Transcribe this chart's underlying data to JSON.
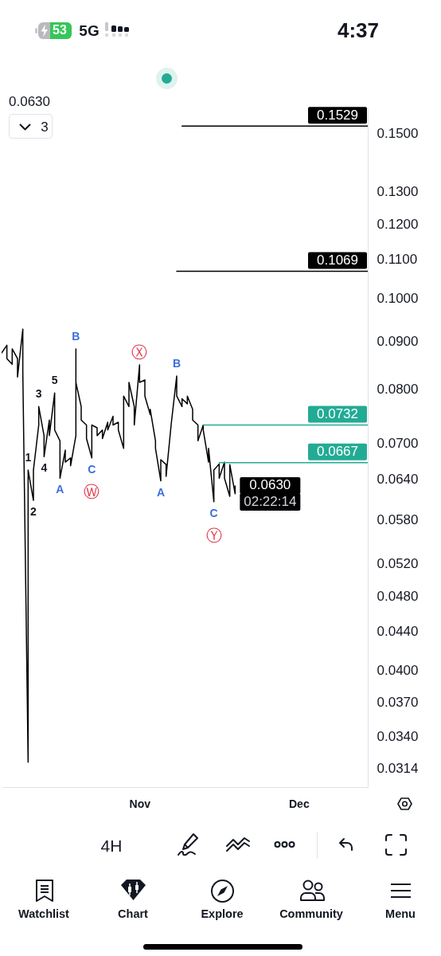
{
  "chart_data": {
    "type": "line",
    "subtitle": "0.0630",
    "log": true,
    "xlim": [
      "--10-06",
      "--12-14"
    ],
    "ylim": [
      0.03,
      0.16
    ],
    "xticks": [
      {
        "value": "--11-01",
        "label": "Nov"
      },
      {
        "value": "--12-01",
        "label": "Dec"
      }
    ],
    "yticks": [
      {
        "value": 0.15,
        "label": "0.1500"
      },
      {
        "value": 0.13,
        "label": "0.1300"
      },
      {
        "value": 0.12,
        "label": "0.1200"
      },
      {
        "value": 0.11,
        "label": "0.1100"
      },
      {
        "value": 0.1,
        "label": "0.1000"
      },
      {
        "value": 0.09,
        "label": "0.0900"
      },
      {
        "value": 0.08,
        "label": "0.0800"
      },
      {
        "value": 0.07,
        "label": "0.0700"
      },
      {
        "value": 0.064,
        "label": "0.0640"
      },
      {
        "value": 0.058,
        "label": "0.0580"
      },
      {
        "value": 0.052,
        "label": "0.0520"
      },
      {
        "value": 0.048,
        "label": "0.0480"
      },
      {
        "value": 0.044,
        "label": "0.0440"
      },
      {
        "value": 0.04,
        "label": "0.0400"
      },
      {
        "value": 0.037,
        "label": "0.0370"
      },
      {
        "value": 0.034,
        "label": "0.0340"
      },
      0.0314
    ],
    "series": [
      {
        "color": "#000000",
        "x": [
          "--10-06",
          "--10-07",
          "--10-07",
          "--10-08",
          "--10-08",
          "--10-09",
          "--10-09",
          "--10-10",
          "--10-10",
          "--10-11",
          "--10-11",
          "--10-12",
          "--10-12",
          "--10-13",
          "--10-13",
          "--10-14",
          "--10-14",
          "--10-15",
          "--10-15",
          "--10-16",
          "--10-16",
          "--10-17",
          "--10-17",
          "--10-18",
          "--10-18",
          "--10-19",
          "--10-19",
          "--10-20",
          "--10-20",
          "--10-20",
          "--10-21",
          "--10-21",
          "--10-22",
          "--10-22",
          "--10-23",
          "--10-23",
          "--10-24",
          "--10-24",
          "--10-25",
          "--10-25",
          "--10-26",
          "--10-26",
          "--10-27",
          "--10-27",
          "--10-28",
          "--10-28",
          "--10-29",
          "--10-29",
          "--10-30",
          "--10-30",
          "--10-31",
          "--10-31",
          "--11-01",
          "--11-01",
          "--11-02",
          "--11-02",
          "--11-03",
          "--11-03",
          "--11-04",
          "--11-04",
          "--11-05",
          "--11-05",
          "--11-06",
          "--11-06",
          "--11-07",
          "--11-08",
          "--11-08",
          "--11-09",
          "--11-09",
          "--11-10",
          "--11-10",
          "--11-11",
          "--11-11",
          "--11-12",
          "--11-12",
          "--11-13",
          "--11-13",
          "--11-14",
          "--11-14",
          "--11-15",
          "--11-15",
          "--11-16",
          "--11-16",
          "--11-17",
          "--11-17",
          "--11-18",
          "--11-18",
          "--11-19",
          "--11-19"
        ],
        "values": [
          0.0874,
          0.0891,
          0.0862,
          0.085,
          0.0883,
          0.0862,
          0.0824,
          0.0927,
          0.0834,
          0.0319,
          0.0655,
          0.0608,
          0.0655,
          0.0732,
          0.0766,
          0.0713,
          0.0677,
          0.0741,
          0.0713,
          0.0792,
          0.0723,
          0.0704,
          0.0642,
          0.0688,
          0.0668,
          0.0675,
          0.0662,
          0.0713,
          0.0883,
          0.0813,
          0.0766,
          0.0741,
          0.0732,
          0.0708,
          0.0675,
          0.0732,
          0.0727,
          0.0713,
          0.0723,
          0.0708,
          0.0737,
          0.0723,
          0.0748,
          0.0732,
          0.0737,
          0.0723,
          0.0691,
          0.0786,
          0.0766,
          0.0813,
          0.0766,
          0.0732,
          0.0849,
          0.0813,
          0.0818,
          0.0786,
          0.0751,
          0.0761,
          0.0704,
          0.0691,
          0.0638,
          0.0672,
          0.0664,
          0.0645,
          0.0737,
          0.0826,
          0.0786,
          0.0766,
          0.0781,
          0.0771,
          0.0786,
          0.0761,
          0.0741,
          0.0732,
          0.0704,
          0.0732,
          0.0723,
          0.0668,
          0.0691,
          0.0606,
          0.0655,
          0.0665,
          0.0642,
          0.0668,
          0.0642,
          0.0614,
          0.0664,
          0.0618,
          0.063
        ],
        "value_labels": [
          null,
          null,
          null,
          null,
          null,
          null,
          null,
          null,
          null,
          null,
          null,
          null,
          null,
          null,
          null,
          null,
          null,
          null,
          null,
          null,
          null,
          null,
          null,
          null,
          null,
          null,
          null,
          null,
          null,
          null,
          null,
          null,
          null,
          null,
          null,
          null,
          null,
          null,
          null,
          null,
          null,
          null,
          null,
          null,
          null,
          null,
          null,
          null,
          null,
          null,
          null,
          null,
          null,
          null,
          null,
          null,
          null,
          null,
          null,
          null,
          null,
          null,
          null,
          null,
          null,
          null,
          null,
          null,
          null,
          null,
          null,
          null,
          null,
          null,
          null,
          null,
          null,
          null,
          null,
          null,
          null,
          null,
          null,
          null,
          null,
          null,
          null,
          null,
          "0.0630"
        ]
      },
      {
        "color": "#000000",
        "x": [
          "--11-09",
          "--12-14"
        ],
        "values": [
          0.1529,
          0.1529
        ],
        "value_labels": [
          null,
          "0.1529"
        ]
      },
      {
        "color": "#000000",
        "x": [
          "--11-08",
          "--12-14"
        ],
        "values": [
          0.1069,
          0.1069
        ],
        "value_labels": [
          null,
          "0.1069"
        ]
      },
      {
        "color": "#22ab94",
        "x": [
          "--11-13",
          "--12-14"
        ],
        "values": [
          0.0732,
          0.0732
        ],
        "value_labels": [
          null,
          "0.0732"
        ]
      },
      {
        "color": "#22ab94",
        "x": [
          "--11-16",
          "--12-14"
        ],
        "values": [
          0.0667,
          0.0667
        ],
        "value_labels": [
          null,
          "0.0667"
        ]
      }
    ],
    "annotations": [
      {
        "text": "1",
        "x": "--10-11",
        "y": 0.0655
      },
      {
        "text": "2",
        "x": "--10-12",
        "y": 0.0608
      },
      {
        "text": "3",
        "x": "--10-13",
        "y": 0.0766
      },
      {
        "text": "4",
        "x": "--10-14",
        "y": 0.0677
      },
      {
        "text": "5",
        "x": "--10-16",
        "y": 0.0792
      },
      {
        "text": "A",
        "x": "--10-17",
        "y": 0.0642
      },
      {
        "text": "B",
        "x": "--10-20",
        "y": 0.0883
      },
      {
        "text": "C",
        "x": "--10-23",
        "y": 0.0675
      },
      {
        "text": "Ⓦ",
        "x": "--10-23",
        "y": 0.0675
      },
      {
        "text": "Ⓧ",
        "x": "--11-01",
        "y": 0.0849
      },
      {
        "text": "A",
        "x": "--11-05",
        "y": 0.0638
      },
      {
        "text": "B",
        "x": "--11-08",
        "y": 0.0826
      },
      {
        "text": "C",
        "x": "--11-15",
        "y": 0.0606
      },
      {
        "text": "Ⓨ",
        "x": "--11-15",
        "y": 0.0606
      },
      "53",
      "5G",
      "4:37",
      "3",
      "02:22:14",
      "4H",
      "Watchlist",
      "Chart",
      "Explore",
      "Community",
      "Menu"
    ]
  }
}
